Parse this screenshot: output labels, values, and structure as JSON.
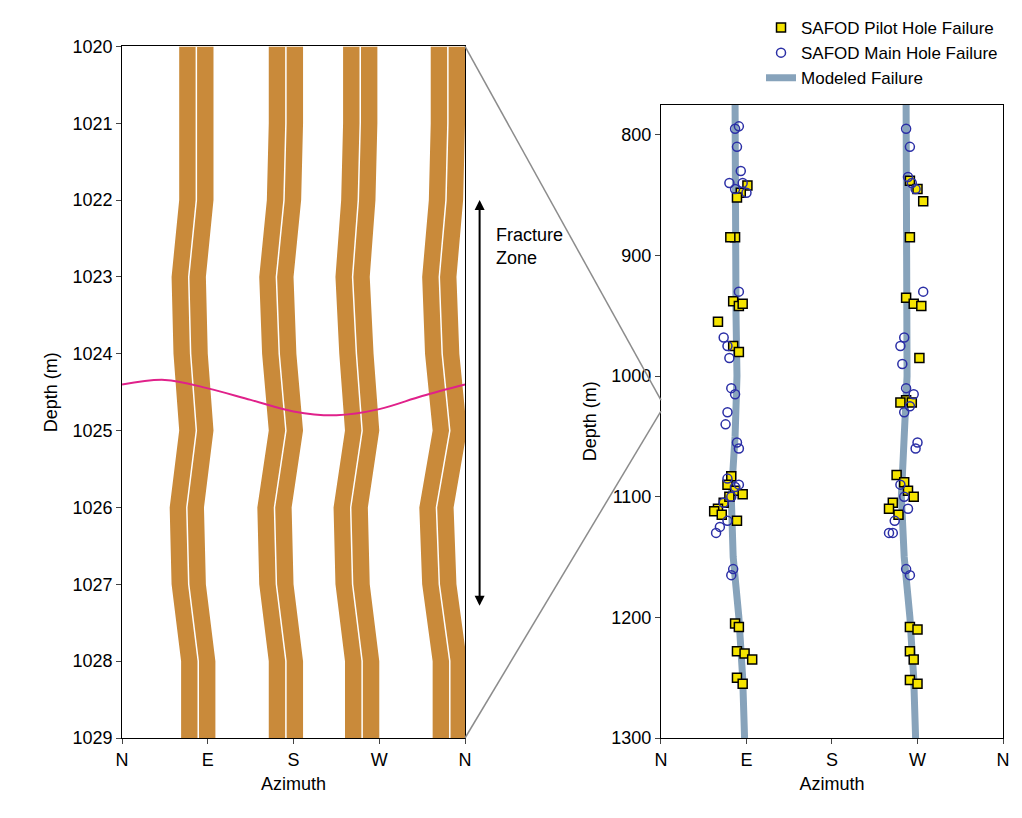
{
  "chart_data": [
    {
      "type": "image_log",
      "xlabel": "Azimuth",
      "ylabel": "Depth (m)",
      "xlim": [
        0,
        360
      ],
      "xticks": [
        {
          "value": 0,
          "label": "N"
        },
        {
          "value": 90,
          "label": "E"
        },
        {
          "value": 180,
          "label": "S"
        },
        {
          "value": 270,
          "label": "W"
        },
        {
          "value": 360,
          "label": "N"
        }
      ],
      "ylim": [
        1020,
        1029
      ],
      "yticks": [
        1020,
        1021,
        1022,
        1023,
        1024,
        1025,
        1026,
        1027,
        1028,
        1029
      ],
      "image_strips": {
        "depth": [
          1020,
          1021,
          1022,
          1023,
          1024,
          1025,
          1026,
          1027,
          1028,
          1029
        ],
        "half_width": 18,
        "color": "#c98a3a",
        "center_line_color": "#ffffff",
        "centers": [
          [
            78,
            78,
            78,
            70,
            72,
            78,
            68,
            70,
            80,
            80
          ],
          [
            172,
            172,
            170,
            162,
            165,
            172,
            160,
            162,
            172,
            172
          ],
          [
            250,
            250,
            248,
            242,
            246,
            252,
            240,
            242,
            252,
            252
          ],
          [
            342,
            342,
            340,
            333,
            336,
            344,
            330,
            333,
            344,
            344
          ]
        ]
      },
      "fracture_trace": {
        "color": "#e0218a",
        "azimuth": [
          0,
          45,
          90,
          135,
          180,
          225,
          270,
          315,
          360
        ],
        "depth": [
          1024.4,
          1024.34,
          1024.45,
          1024.6,
          1024.75,
          1024.8,
          1024.72,
          1024.55,
          1024.4
        ]
      },
      "annotations": [
        {
          "text": "Fracture Zone",
          "depth_range": [
            1022,
            1027.3
          ]
        }
      ]
    },
    {
      "type": "scatter",
      "xlabel": "Azimuth",
      "ylabel": "Depth (m)",
      "xlim": [
        0,
        360
      ],
      "xticks": [
        {
          "value": 0,
          "label": "N"
        },
        {
          "value": 90,
          "label": "E"
        },
        {
          "value": 180,
          "label": "S"
        },
        {
          "value": 270,
          "label": "W"
        },
        {
          "value": 360,
          "label": "N"
        }
      ],
      "ylim": [
        775,
        1300
      ],
      "yticks": [
        800,
        900,
        1000,
        1100,
        1200,
        1300
      ],
      "legend": "top right",
      "series": [
        {
          "name": "SAFOD Pilot Hole Failure",
          "type": "scatter",
          "marker": "square",
          "color": "#f5e400",
          "x": [
            91,
            84,
            80,
            78,
            73,
            76,
            82,
            86,
            60,
            76,
            82,
            74,
            70,
            78,
            66,
            60,
            56,
            64,
            72,
            86,
            80,
            78,
            82,
            80,
            88,
            96,
            80,
            86,
            262,
            270,
            276,
            262,
            258,
            266,
            274,
            258,
            252,
            264,
            272,
            248,
            256,
            244,
            240,
            250,
            260,
            266,
            262,
            270,
            262,
            266,
            262,
            270
          ],
          "y": [
            842,
            848,
            852,
            885,
            885,
            938,
            942,
            940,
            955,
            975,
            980,
            1083,
            1090,
            1095,
            1105,
            1110,
            1112,
            1115,
            1100,
            1098,
            1120,
            1205,
            1208,
            1228,
            1230,
            1235,
            1250,
            1255,
            838,
            845,
            855,
            885,
            935,
            940,
            942,
            1020,
            1022,
            1022,
            985,
            1082,
            1088,
            1105,
            1110,
            1115,
            1095,
            1100,
            1208,
            1210,
            1228,
            1235,
            1252,
            1255
          ]
        },
        {
          "name": "SAFOD Main Hole Failure",
          "type": "scatter",
          "marker": "open circle",
          "color": "#2b2fa6",
          "x": [
            78,
            82,
            72,
            78,
            84,
            86,
            90,
            80,
            82,
            66,
            70,
            72,
            74,
            78,
            70,
            68,
            80,
            82,
            70,
            74,
            78,
            82,
            66,
            70,
            62,
            58,
            76,
            74,
            258,
            262,
            264,
            260,
            268,
            276,
            256,
            252,
            254,
            258,
            266,
            262,
            256,
            270,
            268,
            252,
            256,
            260,
            246,
            244,
            240,
            258,
            262
          ],
          "y": [
            795,
            793,
            840,
            845,
            830,
            840,
            848,
            810,
            930,
            968,
            975,
            985,
            1010,
            1015,
            1030,
            1040,
            1055,
            1060,
            1085,
            1100,
            1092,
            1090,
            1105,
            1120,
            1125,
            1130,
            1160,
            1165,
            795,
            810,
            840,
            835,
            845,
            930,
            968,
            975,
            990,
            1010,
            1015,
            1025,
            1030,
            1055,
            1060,
            1090,
            1100,
            1110,
            1120,
            1130,
            1130,
            1160,
            1165
          ]
        },
        {
          "name": "Modeled Failure",
          "type": "line",
          "color": "#87a3bb",
          "x": [
            78,
            78,
            78,
            79,
            80,
            78,
            74,
            76,
            82,
            86,
            88,
            null,
            258,
            258,
            258,
            259,
            259,
            256,
            253,
            256,
            262,
            266,
            268
          ],
          "y": [
            775,
            850,
            900,
            950,
            1000,
            1050,
            1100,
            1150,
            1200,
            1250,
            1300,
            null,
            775,
            850,
            900,
            950,
            1000,
            1050,
            1100,
            1150,
            1200,
            1250,
            1300
          ]
        }
      ]
    }
  ]
}
